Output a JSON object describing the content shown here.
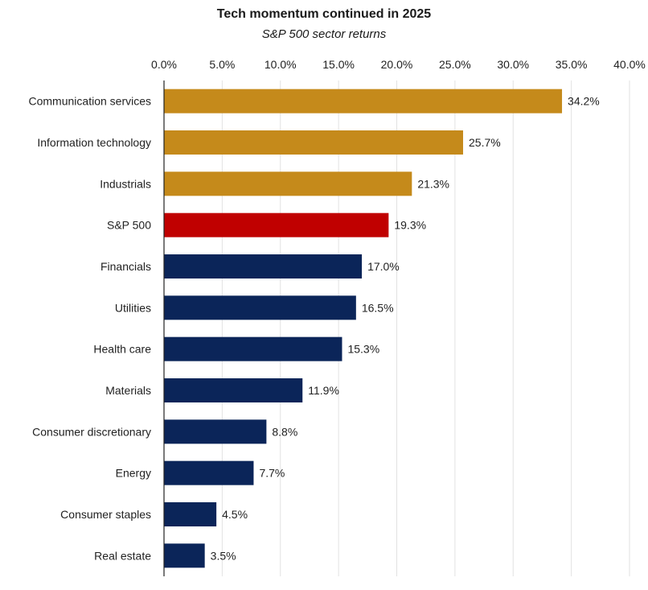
{
  "chart_data": {
    "type": "bar",
    "orientation": "horizontal",
    "title": "Tech momentum continued in 2025",
    "subtitle": "S&P 500 sector returns",
    "xlim": [
      0,
      40
    ],
    "x_tick_values": [
      0,
      5,
      10,
      15,
      20,
      25,
      30,
      35,
      40
    ],
    "x_tick_labels": [
      "0.0%",
      "5.0%",
      "10.0%",
      "15.0%",
      "20.0%",
      "25.0%",
      "30.0%",
      "35.0%",
      "40.0%"
    ],
    "x_axis_position": "top",
    "grid": true,
    "categories": [
      "Communication services",
      "Information technology",
      "Industrials",
      "S&P 500",
      "Financials",
      "Utilities",
      "Health care",
      "Materials",
      "Consumer discretionary",
      "Energy",
      "Consumer staples",
      "Real estate"
    ],
    "values": [
      34.2,
      25.7,
      21.3,
      19.3,
      17.0,
      16.5,
      15.3,
      11.9,
      8.8,
      7.7,
      4.5,
      3.5
    ],
    "data_labels": [
      "34.2%",
      "25.7%",
      "21.3%",
      "19.3%",
      "17.0%",
      "16.5%",
      "15.3%",
      "11.9%",
      "8.8%",
      "7.7%",
      "4.5%",
      "3.5%"
    ],
    "bar_colors": [
      "#C58A1B",
      "#C58A1B",
      "#C58A1B",
      "#C00000",
      "#0B2559",
      "#0B2559",
      "#0B2559",
      "#0B2559",
      "#0B2559",
      "#0B2559",
      "#0B2559",
      "#0B2559"
    ],
    "grid_color": "#E2E2E2",
    "axis_color": "#222222"
  }
}
